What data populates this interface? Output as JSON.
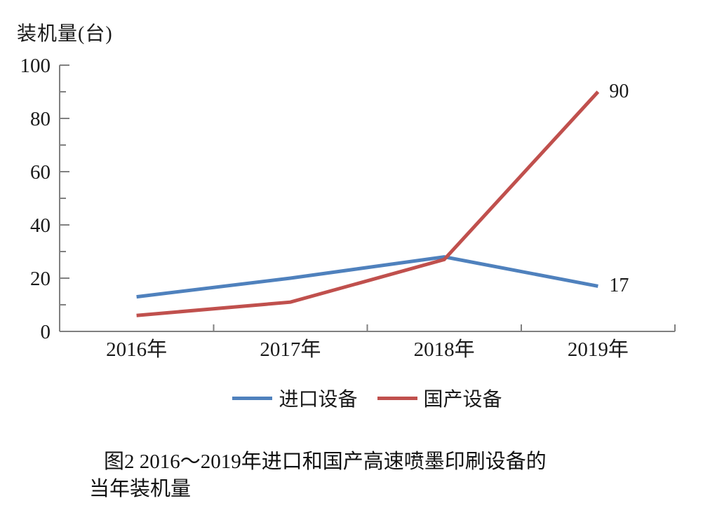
{
  "figure": {
    "background": "#ffffff"
  },
  "chart_data": {
    "type": "line",
    "title": "",
    "y_axis_title": "装机量(台)",
    "xlabel": "",
    "ylabel": "装机量(台)",
    "categories": [
      "2016年",
      "2017年",
      "2018年",
      "2019年"
    ],
    "series": [
      {
        "name": "进口设备",
        "color": "#4f81bd",
        "values": [
          13,
          20,
          28,
          17
        ]
      },
      {
        "name": "国产设备",
        "color": "#c0504d",
        "values": [
          6,
          11,
          27,
          90
        ]
      }
    ],
    "ylim": [
      0,
      100
    ],
    "y_major_ticks": [
      0,
      20,
      40,
      60,
      80,
      100
    ],
    "y_minor_ticks": [
      10,
      30,
      50,
      70,
      90
    ],
    "grid": false,
    "legend_position": "bottom",
    "end_labels": [
      {
        "series_index": 0,
        "value": 17
      },
      {
        "series_index": 1,
        "value": 90
      }
    ]
  },
  "caption": {
    "line1": "图2 2016～2019年进口和国产高速喷墨印刷设备的",
    "line2": "当年装机量"
  },
  "colors": {
    "axis": "#808080",
    "text": "#1a1a1a"
  }
}
